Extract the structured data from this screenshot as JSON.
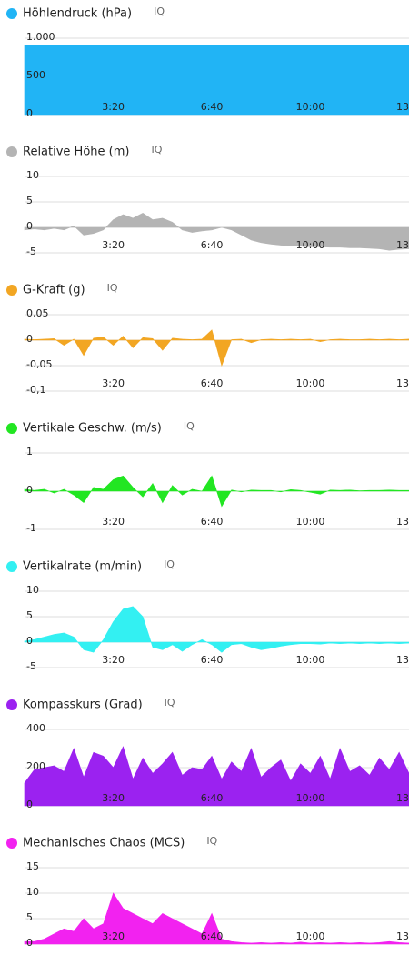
{
  "chart_data": [
    {
      "type": "area",
      "title": "Höhlendruck (hPa)",
      "badge": "IQ",
      "color": "#21b4f5",
      "x": [
        20,
        40,
        60,
        80,
        100,
        120,
        140,
        160,
        180,
        200,
        220,
        240,
        260,
        280,
        300,
        320,
        340,
        360,
        380,
        400,
        420,
        440,
        460,
        480,
        500,
        520,
        540,
        560,
        580,
        600,
        620,
        640,
        660,
        680,
        700,
        720,
        740,
        760,
        780,
        800
      ],
      "values": [
        905,
        905,
        905,
        905,
        905,
        905,
        905,
        905,
        905,
        905,
        905,
        905,
        905,
        905,
        905,
        905,
        905,
        905,
        905,
        905,
        905,
        905,
        905,
        905,
        905,
        905,
        905,
        905,
        905,
        905,
        905,
        905,
        905,
        905,
        905,
        905,
        905,
        905,
        905,
        905
      ],
      "xlim": [
        20,
        800
      ],
      "xticks": [
        {
          "value": 200,
          "label": "3:20"
        },
        {
          "value": 400,
          "label": "6:40"
        },
        {
          "value": 600,
          "label": "10:00"
        },
        {
          "value": 800,
          "label": "13"
        }
      ],
      "ylim": [
        0,
        1000
      ],
      "yticks": [
        {
          "value": 1000,
          "label": "1.000"
        },
        500,
        0
      ],
      "grid": true
    },
    {
      "type": "area",
      "title": "Relative Höhe (m)",
      "badge": "IQ",
      "color": "#b4b4b4",
      "x": [
        20,
        40,
        60,
        80,
        100,
        120,
        140,
        160,
        180,
        200,
        220,
        240,
        260,
        280,
        300,
        320,
        340,
        360,
        380,
        400,
        420,
        440,
        460,
        480,
        500,
        520,
        540,
        560,
        580,
        600,
        620,
        640,
        660,
        680,
        700,
        720,
        740,
        760,
        780,
        800
      ],
      "values": [
        -0.5,
        -0.3,
        -0.5,
        -0.2,
        -0.5,
        0.3,
        -1.5,
        -1.2,
        -0.5,
        1.5,
        2.5,
        1.8,
        2.8,
        1.5,
        1.8,
        1,
        -0.5,
        -1,
        -0.7,
        -0.5,
        0,
        -0.5,
        -1.5,
        -2.5,
        -3,
        -3.3,
        -3.5,
        -3.6,
        -3.7,
        -3.8,
        -3.8,
        -3.9,
        -3.9,
        -4,
        -4,
        -4.1,
        -4.2,
        -4.5,
        -4.3,
        -4.2
      ],
      "xlim": [
        20,
        800
      ],
      "xticks": [
        {
          "value": 200,
          "label": "3:20"
        },
        {
          "value": 400,
          "label": "6:40"
        },
        {
          "value": 600,
          "label": "10:00"
        },
        {
          "value": 800,
          "label": "13"
        }
      ],
      "ylim": [
        -5,
        10
      ],
      "yticks": [
        10,
        5,
        0,
        -5
      ],
      "grid": true
    },
    {
      "type": "area",
      "title": "G-Kraft (g)",
      "badge": "IQ",
      "color": "#f2a623",
      "x": [
        20,
        40,
        60,
        80,
        100,
        120,
        140,
        160,
        180,
        200,
        220,
        240,
        260,
        280,
        300,
        320,
        340,
        360,
        380,
        400,
        420,
        440,
        460,
        480,
        500,
        520,
        540,
        560,
        580,
        600,
        620,
        640,
        660,
        680,
        700,
        720,
        740,
        760,
        780,
        800
      ],
      "values": [
        0.002,
        0.001,
        0.002,
        0.003,
        -0.01,
        0.002,
        -0.03,
        0.004,
        0.006,
        -0.01,
        0.008,
        -0.015,
        0.005,
        0.003,
        -0.02,
        0.004,
        0.002,
        0.001,
        0.002,
        0.02,
        -0.05,
        0.001,
        0.002,
        -0.005,
        0.001,
        0.002,
        0.001,
        0.002,
        0.001,
        0.002,
        -0.003,
        0.001,
        0.002,
        0.001,
        0.001,
        0.002,
        0.001,
        0.002,
        0.001,
        0.002
      ],
      "xlim": [
        20,
        800
      ],
      "xticks": [
        {
          "value": 200,
          "label": "3:20"
        },
        {
          "value": 400,
          "label": "6:40"
        },
        {
          "value": 600,
          "label": "10:00"
        },
        {
          "value": 800,
          "label": "13"
        }
      ],
      "ylim": [
        -0.1,
        0.05
      ],
      "yticks": [
        {
          "value": 0.05,
          "label": "0,05"
        },
        0,
        {
          "value": -0.05,
          "label": "-0,05"
        },
        {
          "value": -0.1,
          "label": "-0,1"
        }
      ],
      "grid": true
    },
    {
      "type": "area",
      "title": "Vertikale Geschw. (m/s)",
      "badge": "IQ",
      "color": "#22e622",
      "x": [
        20,
        40,
        60,
        80,
        100,
        120,
        140,
        160,
        180,
        200,
        220,
        240,
        260,
        280,
        300,
        320,
        340,
        360,
        380,
        400,
        420,
        440,
        460,
        480,
        500,
        520,
        540,
        560,
        580,
        600,
        620,
        640,
        660,
        680,
        700,
        720,
        740,
        760,
        780,
        800
      ],
      "values": [
        0.05,
        0.02,
        0.05,
        -0.05,
        0.05,
        -0.1,
        -0.3,
        0.1,
        0.05,
        0.3,
        0.4,
        0.1,
        -0.15,
        0.2,
        -0.3,
        0.15,
        -0.1,
        0.05,
        0,
        0.4,
        -0.4,
        0.03,
        -0.02,
        0.03,
        0.02,
        0.02,
        -0.02,
        0.04,
        0.02,
        -0.03,
        -0.08,
        0.03,
        0.02,
        0.03,
        0.01,
        0.02,
        0.02,
        0.03,
        0.02,
        0.02
      ],
      "xlim": [
        20,
        800
      ],
      "xticks": [
        {
          "value": 200,
          "label": "3:20"
        },
        {
          "value": 400,
          "label": "6:40"
        },
        {
          "value": 600,
          "label": "10:00"
        },
        {
          "value": 800,
          "label": "13"
        }
      ],
      "ylim": [
        -1,
        1
      ],
      "yticks": [
        1,
        0,
        -1
      ],
      "grid": true
    },
    {
      "type": "area",
      "title": "Vertikalrate (m/min)",
      "badge": "IQ",
      "color": "#33f0f2",
      "x": [
        20,
        40,
        60,
        80,
        100,
        120,
        140,
        160,
        180,
        200,
        220,
        240,
        260,
        280,
        300,
        320,
        340,
        360,
        380,
        400,
        420,
        440,
        460,
        480,
        500,
        520,
        540,
        560,
        580,
        600,
        620,
        640,
        660,
        680,
        700,
        720,
        740,
        760,
        780,
        800
      ],
      "values": [
        0.2,
        0.5,
        1,
        1.5,
        1.8,
        1,
        -1.5,
        -2,
        0.5,
        4,
        6.5,
        7,
        5,
        -1,
        -1.5,
        -0.5,
        -1.8,
        -0.5,
        0.5,
        -0.5,
        -2,
        -0.5,
        -0.3,
        -1,
        -1.5,
        -1.2,
        -0.8,
        -0.5,
        -0.3,
        -0.3,
        -0.4,
        -0.2,
        -0.3,
        -0.2,
        -0.3,
        -0.2,
        -0.3,
        -0.2,
        -0.3,
        -0.2
      ],
      "xlim": [
        20,
        800
      ],
      "xticks": [
        {
          "value": 200,
          "label": "3:20"
        },
        {
          "value": 400,
          "label": "6:40"
        },
        {
          "value": 600,
          "label": "10:00"
        },
        {
          "value": 800,
          "label": "13"
        }
      ],
      "ylim": [
        -5,
        10
      ],
      "yticks": [
        10,
        5,
        0,
        -5
      ],
      "grid": true
    },
    {
      "type": "area",
      "title": "Kompasskurs (Grad)",
      "badge": "IQ",
      "color": "#9b22f0",
      "x": [
        20,
        40,
        60,
        80,
        100,
        120,
        140,
        160,
        180,
        200,
        220,
        240,
        260,
        280,
        300,
        320,
        340,
        360,
        380,
        400,
        420,
        440,
        460,
        480,
        500,
        520,
        540,
        560,
        580,
        600,
        620,
        640,
        660,
        680,
        700,
        720,
        740,
        760,
        780,
        800
      ],
      "values": [
        120,
        190,
        200,
        210,
        180,
        300,
        150,
        280,
        260,
        200,
        310,
        140,
        250,
        170,
        220,
        280,
        160,
        200,
        190,
        260,
        140,
        230,
        180,
        300,
        150,
        200,
        240,
        130,
        220,
        170,
        260,
        140,
        300,
        180,
        210,
        160,
        250,
        190,
        280,
        170
      ],
      "xlim": [
        20,
        800
      ],
      "xticks": [
        {
          "value": 200,
          "label": "3:20"
        },
        {
          "value": 400,
          "label": "6:40"
        },
        {
          "value": 600,
          "label": "10:00"
        },
        {
          "value": 800,
          "label": "13"
        }
      ],
      "ylim": [
        0,
        400
      ],
      "yticks": [
        400,
        200,
        0
      ],
      "grid": true
    },
    {
      "type": "area",
      "title": "Mechanisches Chaos (MCS)",
      "badge": "IQ",
      "color": "#f222f0",
      "x": [
        20,
        40,
        60,
        80,
        100,
        120,
        140,
        160,
        180,
        200,
        220,
        240,
        260,
        280,
        300,
        320,
        340,
        360,
        380,
        400,
        420,
        440,
        460,
        480,
        500,
        520,
        540,
        560,
        580,
        600,
        620,
        640,
        660,
        680,
        700,
        720,
        740,
        760,
        780,
        800
      ],
      "values": [
        0.5,
        0.5,
        1,
        2,
        3,
        2.5,
        5,
        3,
        4,
        10,
        7,
        6,
        5,
        4,
        6,
        5,
        4,
        3,
        2,
        6,
        1,
        0.5,
        0.3,
        0.2,
        0.3,
        0.2,
        0.3,
        0.2,
        0.4,
        0.2,
        0.3,
        0.2,
        0.3,
        0.2,
        0.3,
        0.2,
        0.3,
        0.5,
        0.3,
        0.2
      ],
      "xlim": [
        20,
        800
      ],
      "xticks": [
        {
          "value": 200,
          "label": "3:20"
        },
        {
          "value": 400,
          "label": "6:40"
        },
        {
          "value": 600,
          "label": "10:00"
        },
        {
          "value": 800,
          "label": "13"
        }
      ],
      "ylim": [
        0,
        15
      ],
      "yticks": [
        15,
        10,
        5,
        0
      ],
      "grid": true
    }
  ]
}
